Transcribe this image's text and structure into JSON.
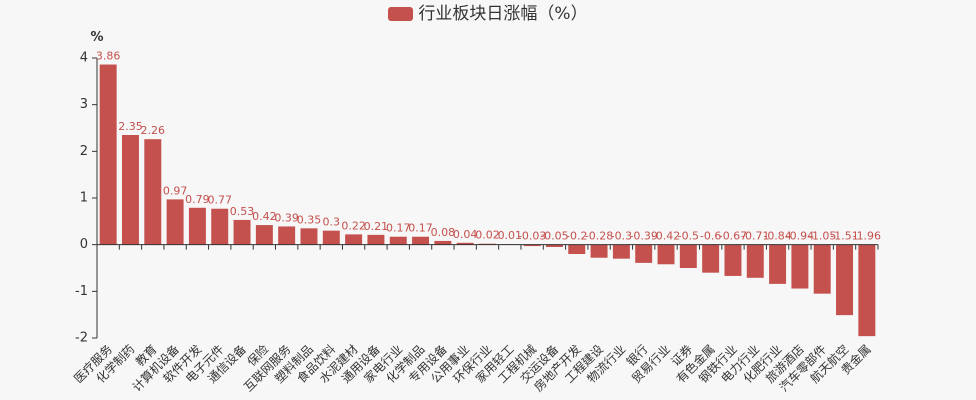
{
  "colors": {
    "bar": "#c4514d",
    "axis": "#333333",
    "text": "#333333",
    "background": "#f7f7f7"
  },
  "chart_data": {
    "type": "bar",
    "title": "",
    "xlabel": "",
    "ylabel": "%",
    "ylim": [
      -2,
      4
    ],
    "yticks": [
      4,
      3,
      2,
      1,
      0,
      -1,
      -2
    ],
    "grid": false,
    "legend_position": "top-center",
    "categories": [
      "医疗服务",
      "化学制药",
      "教育",
      "计算机设备",
      "软件开发",
      "电子元件",
      "通信设备",
      "保险",
      "互联网服务",
      "塑料制品",
      "食品饮料",
      "水泥建材",
      "通用设备",
      "家电行业",
      "化学制品",
      "专用设备",
      "公用事业",
      "环保行业",
      "家用轻工",
      "工程机械",
      "交运设备",
      "房地产开发",
      "工程建设",
      "物流行业",
      "银行",
      "贸易行业",
      "证券",
      "有色金属",
      "钢铁行业",
      "电力行业",
      "化肥行业",
      "旅游酒店",
      "汽车零部件",
      "航天航空",
      "贵金属"
    ],
    "series": [
      {
        "name": "行业板块日涨幅（%）",
        "values": [
          3.86,
          2.35,
          2.26,
          0.97,
          0.79,
          0.77,
          0.53,
          0.42,
          0.39,
          0.35,
          0.3,
          0.22,
          0.21,
          0.17,
          0.17,
          0.08,
          0.04,
          0.02,
          0.01,
          -0.03,
          -0.05,
          -0.2,
          -0.28,
          -0.3,
          -0.39,
          -0.42,
          -0.5,
          -0.6,
          -0.67,
          -0.71,
          -0.84,
          -0.94,
          -1.05,
          -1.51,
          -1.96
        ]
      }
    ]
  }
}
